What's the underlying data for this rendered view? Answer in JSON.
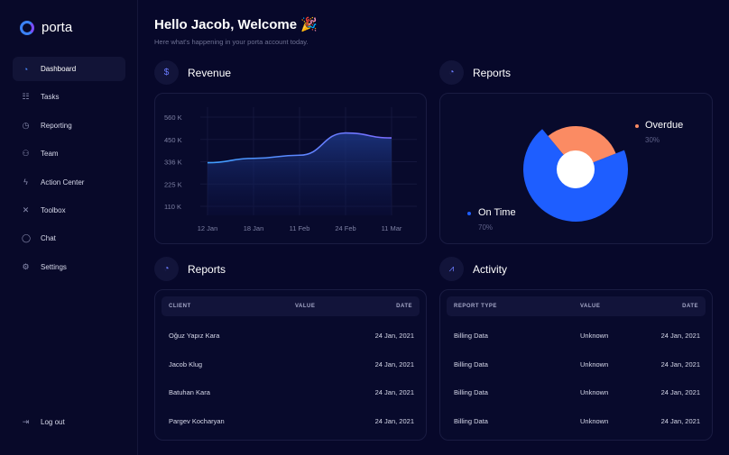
{
  "brand": "porta",
  "sidebar": {
    "items": [
      {
        "label": "Dashboard",
        "icon": "gauge-icon",
        "glyph": "◔",
        "active": true
      },
      {
        "label": "Tasks",
        "icon": "list-icon",
        "glyph": "☷"
      },
      {
        "label": "Reporting",
        "icon": "pie-chart-icon",
        "glyph": "◷"
      },
      {
        "label": "Team",
        "icon": "team-icon",
        "glyph": "⚇"
      },
      {
        "label": "Action Center",
        "icon": "lightning-icon",
        "glyph": "ϟ"
      },
      {
        "label": "Toolbox",
        "icon": "tools-icon",
        "glyph": "✕"
      },
      {
        "label": "Chat",
        "icon": "chat-icon",
        "glyph": "◯"
      },
      {
        "label": "Settings",
        "icon": "gear-icon",
        "glyph": "⚙"
      }
    ],
    "logout": {
      "label": "Log out",
      "icon": "logout-icon",
      "glyph": "⇥"
    }
  },
  "header": {
    "title": "Hello Jacob, Welcome 🎉",
    "subtitle": "Here what's happening in your porta account today."
  },
  "revenue": {
    "title": "Revenue",
    "icon": "dollar-icon"
  },
  "reports_chart": {
    "title": "Reports",
    "icon": "pie-chart-icon"
  },
  "chart_data": [
    {
      "type": "area",
      "categories": [
        "12 Jan",
        "18 Jan",
        "11 Feb",
        "24 Feb",
        "11 Mar"
      ],
      "series": [
        {
          "values": [
            330,
            352,
            368,
            480,
            455
          ]
        }
      ],
      "yticks": [
        "560 K",
        "450 K",
        "336 K",
        "225 K",
        "110 K"
      ],
      "ylim": [
        110,
        560
      ],
      "grid": true,
      "color": "#4b8bff"
    },
    {
      "type": "pie",
      "slices": [
        {
          "name": "On Time",
          "label": "70%",
          "value": 70,
          "color": "#1e5eff"
        },
        {
          "name": "Overdue",
          "label": "30%",
          "value": 30,
          "color": "#fb8b63"
        }
      ],
      "legend": "side"
    }
  ],
  "reports_table": {
    "title": "Reports",
    "icon": "pie-chart-icon",
    "columns": [
      "CLIENT",
      "VALUE",
      "DATE"
    ],
    "rows": [
      [
        "Oğuz Yapız Kara",
        "",
        "24 Jan, 2021"
      ],
      [
        "Jacob Klug",
        "",
        "24 Jan, 2021"
      ],
      [
        "Batuhan Kara",
        "",
        "24 Jan, 2021"
      ],
      [
        "Pargev Kocharyan",
        "",
        "24 Jan, 2021"
      ]
    ]
  },
  "activity_table": {
    "title": "Activity",
    "icon": "line-chart-icon",
    "columns": [
      "REPORT TYPE",
      "VALUE",
      "DATE"
    ],
    "rows": [
      [
        "Billing Data",
        "Unknown",
        "24 Jan, 2021"
      ],
      [
        "Billing Data",
        "Unknown",
        "24 Jan, 2021"
      ],
      [
        "Billing Data",
        "Unknown",
        "24 Jan, 2021"
      ],
      [
        "Billing Data",
        "Unknown",
        "24 Jan, 2021"
      ]
    ]
  }
}
